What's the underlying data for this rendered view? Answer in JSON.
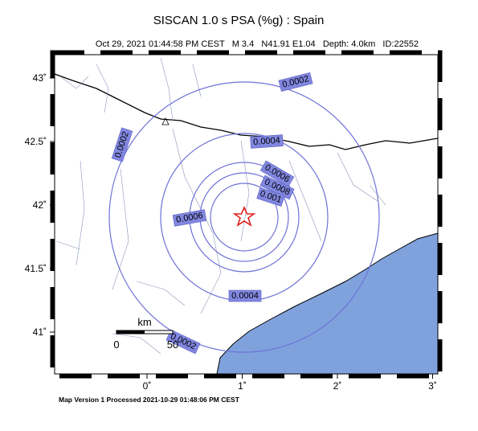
{
  "header": {
    "title": "SISCAN 1.0 s PSA (%g) : Spain",
    "subtitle": "Oct 29, 2021 01:44:58 PM CEST   M 3.4   N41.91 E1.04   Depth: 4.0km   ID:22552"
  },
  "axes": {
    "lat_ticks": [
      {
        "value": 43,
        "label": "43˚"
      },
      {
        "value": 42.5,
        "label": "42.5˚"
      },
      {
        "value": 42,
        "label": "42˚"
      },
      {
        "value": 41.5,
        "label": "41.5˚"
      },
      {
        "value": 41,
        "label": "41˚"
      }
    ],
    "lon_ticks": [
      {
        "value": 0,
        "label": "0˚"
      },
      {
        "value": 1,
        "label": "1˚"
      },
      {
        "value": 2,
        "label": "2˚"
      },
      {
        "value": 3,
        "label": "3˚"
      }
    ]
  },
  "contour_labels": [
    "0.0002",
    "0.0002",
    "0.0004",
    "0.0006",
    "0.0008",
    "0.001",
    "0.0006",
    "0.0004",
    "0.0002"
  ],
  "scale_bar": {
    "unit": "km",
    "start": "0",
    "end": "50"
  },
  "footer": "Map Version 1 Processed 2021-10-29 01:48:06 PM CEST"
}
